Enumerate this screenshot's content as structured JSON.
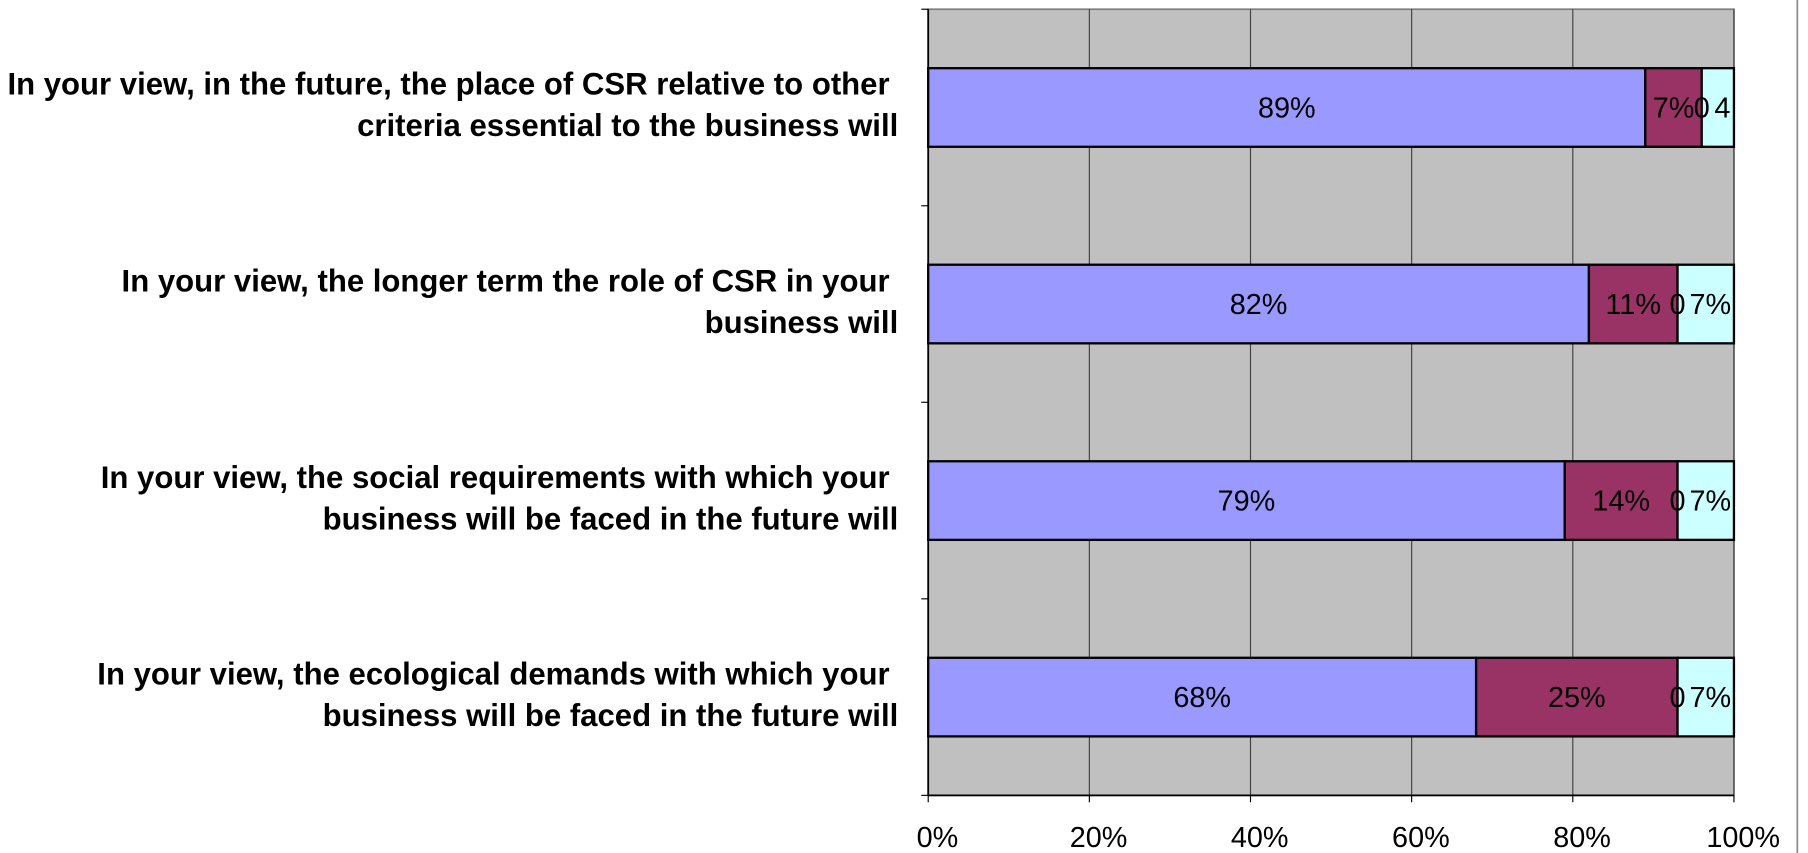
{
  "chart_data": {
    "type": "stacked-bar-horizontal",
    "categories": [
      "In your view, in the future, the place of CSR relative to other criteria essential to the business will",
      "In your view, the longer term the role of CSR in your business will",
      "In your view, the social requirements with which your business will be faced in the future will",
      "In your view, the ecological demands with which your business will be faced in the future will"
    ],
    "series": [
      {
        "color": "#9999ff",
        "values": [
          89,
          82,
          79,
          68
        ],
        "value_labels": [
          "89%",
          "82%",
          "79%",
          "68%"
        ]
      },
      {
        "color": "#993366",
        "values": [
          7,
          11,
          14,
          25
        ],
        "value_labels": [
          "7%",
          "11%",
          "14%",
          "25%"
        ]
      },
      {
        "color": "#ffffcc",
        "values": [
          0,
          0,
          0,
          0
        ],
        "value_labels": [
          "0",
          "0",
          "0",
          "0"
        ]
      },
      {
        "color": "#ccffff",
        "values": [
          4,
          7,
          7,
          7
        ],
        "value_labels": [
          "4",
          "7%",
          "7%",
          "7%"
        ]
      }
    ],
    "xlim": [
      0,
      100
    ],
    "xticks": [
      {
        "value": 0,
        "label": "0%"
      },
      {
        "value": 20,
        "label": "20%"
      },
      {
        "value": 40,
        "label": "40%"
      },
      {
        "value": 60,
        "label": "60%"
      },
      {
        "value": 80,
        "label": "80%"
      },
      {
        "value": 100,
        "label": "100%"
      }
    ],
    "grid": true,
    "plot_background": "#c0c0c0"
  }
}
